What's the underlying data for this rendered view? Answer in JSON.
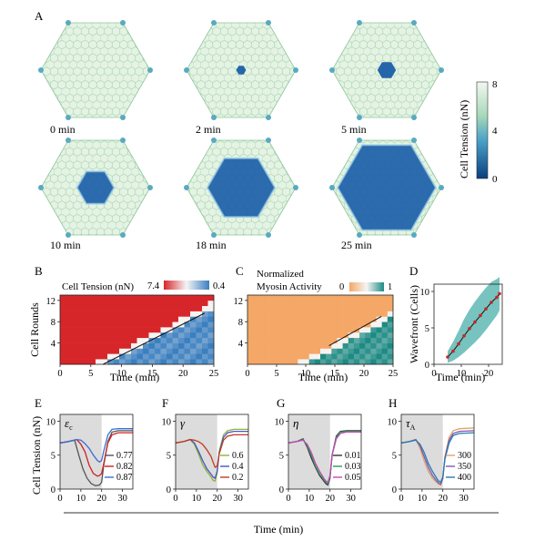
{
  "figure": {
    "panel_labels": [
      "A",
      "B",
      "C",
      "D",
      "E",
      "F",
      "G",
      "H"
    ],
    "bottom_xlabel": "Time (min)"
  },
  "colors": {
    "tension_high": "#e6f4e6",
    "tension_low": "#0a4f8f",
    "cell_edge": "#7fbf8a",
    "hm_red": "#d7262a",
    "hm_blue": "#3a7fc0",
    "hm_orange": "#f4a767",
    "hm_teal": "#1d8a84",
    "dot": "#cc2222",
    "band": "#5fb8b4",
    "shade": "#dcdcdc"
  },
  "chart_data": [
    {
      "id": "A",
      "type": "heatmap",
      "snapshot_labels": [
        "0 min",
        "2 min",
        "5 min",
        "10 min",
        "18 min",
        "25 min"
      ],
      "snapshot_times": [
        0,
        2,
        5,
        10,
        18,
        25
      ],
      "wave_radius_fraction": [
        0,
        0.09,
        0.17,
        0.34,
        0.62,
        0.9
      ],
      "colorbar": {
        "label": "Cell Tension (nN)",
        "ticks": [
          "8",
          "4",
          "0"
        ],
        "range": [
          0,
          8
        ]
      }
    },
    {
      "id": "B",
      "type": "heatmap",
      "title": "Cell Tension (nN)",
      "colorbar_ticks": [
        "7.4",
        "0.4"
      ],
      "xlabel": "Time (min)",
      "ylabel": "Cell Rounds",
      "xticks": [
        "0",
        "5",
        "10",
        "15",
        "20",
        "25"
      ],
      "yticks": [
        "4",
        "8",
        "12"
      ],
      "xlim": [
        0,
        25
      ],
      "ylim": [
        0,
        13
      ],
      "front": {
        "t0": 7,
        "slope": 0.58,
        "fit_line": [
          [
            7,
            0
          ],
          [
            23.5,
            9.6
          ]
        ]
      }
    },
    {
      "id": "C",
      "type": "heatmap",
      "title_lines": [
        "Normalized",
        "Myosin Activity"
      ],
      "colorbar_ticks": [
        "0",
        "1"
      ],
      "xlabel": "Time (min)",
      "xticks": [
        "0",
        "5",
        "10",
        "15",
        "20",
        "25"
      ],
      "yticks": [
        "4",
        "8",
        "12"
      ],
      "xlim": [
        0,
        25
      ],
      "ylim": [
        0,
        13
      ],
      "front": {
        "t0": 10,
        "slope": 0.58,
        "fit_line": [
          [
            14,
            3.5
          ],
          [
            23,
            9
          ]
        ]
      }
    },
    {
      "id": "D",
      "type": "scatter",
      "xlabel": "Time (min)",
      "ylabel": "Wavefront (Cells)",
      "xticks": [
        "0",
        "10",
        "20"
      ],
      "yticks": [
        "0",
        "5",
        "10"
      ],
      "xlim": [
        0,
        25
      ],
      "ylim": [
        0,
        11
      ],
      "x": [
        5,
        7,
        9,
        11,
        13,
        15,
        17,
        19,
        21,
        23,
        24
      ],
      "y": [
        1.0,
        1.8,
        2.8,
        3.9,
        4.9,
        5.8,
        6.7,
        7.6,
        8.5,
        9.2,
        9.7
      ],
      "band_halfwidth": [
        0.8,
        1.3,
        1.8,
        2.3,
        2.6,
        2.8,
        2.9,
        2.9,
        2.8,
        2.5,
        2.3
      ]
    },
    {
      "id": "E",
      "type": "line",
      "ylabel": "Cell Tension (nN)",
      "param_symbol": "ε",
      "param_sub": "c",
      "xticks": [
        "0",
        "10",
        "20",
        "30"
      ],
      "yticks": [
        "0",
        "5",
        "10"
      ],
      "xlim": [
        0,
        35
      ],
      "ylim": [
        0,
        11
      ],
      "shade_until": 20,
      "series": [
        {
          "name": "0.77",
          "color": "#555555",
          "x": [
            0,
            4,
            7,
            9,
            11,
            13,
            15,
            17,
            19,
            20,
            21,
            23,
            25,
            28,
            31,
            35
          ],
          "y": [
            6.8,
            7.0,
            7.2,
            5.0,
            3.0,
            1.6,
            0.8,
            0.5,
            0.6,
            1.0,
            3.5,
            7.0,
            8.4,
            8.6,
            8.6,
            8.6
          ]
        },
        {
          "name": "0.82",
          "color": "#d02020",
          "x": [
            0,
            4,
            8,
            10,
            12,
            14,
            16,
            18,
            19,
            20,
            21,
            23,
            25,
            28,
            31,
            35
          ],
          "y": [
            6.8,
            7.0,
            7.3,
            6.6,
            5.5,
            3.5,
            2.3,
            1.9,
            2.0,
            2.3,
            3.8,
            6.8,
            8.0,
            8.3,
            8.3,
            8.3
          ]
        },
        {
          "name": "0.87",
          "color": "#3a6fd0",
          "x": [
            0,
            4,
            8,
            10,
            12,
            14,
            16,
            18,
            19,
            20,
            21,
            23,
            25,
            28,
            31,
            35
          ],
          "y": [
            6.8,
            7.0,
            7.3,
            7.2,
            6.7,
            6.0,
            5.0,
            4.2,
            4.0,
            4.2,
            5.6,
            8.0,
            8.8,
            8.9,
            8.9,
            8.9
          ]
        }
      ]
    },
    {
      "id": "F",
      "type": "line",
      "param_symbol": "γ",
      "xticks": [
        "0",
        "10",
        "20",
        "30"
      ],
      "yticks": [
        "0",
        "5",
        "10"
      ],
      "xlim": [
        0,
        35
      ],
      "ylim": [
        0,
        11
      ],
      "shade_until": 20,
      "series": [
        {
          "name": "0.6",
          "color": "#8ab53a",
          "x": [
            0,
            4,
            7,
            9,
            11,
            13,
            15,
            17,
            18,
            19,
            20,
            21,
            23,
            25,
            28,
            35
          ],
          "y": [
            6.8,
            7.0,
            7.3,
            6.6,
            5.2,
            3.6,
            2.6,
            1.8,
            1.3,
            1.2,
            2.4,
            5.6,
            8.0,
            8.6,
            8.8,
            8.8
          ]
        },
        {
          "name": "0.4",
          "color": "#4a55c0",
          "x": [
            0,
            4,
            7,
            9,
            11,
            13,
            15,
            17,
            18,
            19,
            20,
            21,
            23,
            25,
            28,
            35
          ],
          "y": [
            6.8,
            7.0,
            7.3,
            6.8,
            5.6,
            4.2,
            3.0,
            2.2,
            1.8,
            1.6,
            2.6,
            5.4,
            7.6,
            8.3,
            8.5,
            8.5
          ]
        },
        {
          "name": "0.2",
          "color": "#c23a22",
          "x": [
            0,
            4,
            7,
            9,
            11,
            13,
            15,
            17,
            18,
            19,
            20,
            21,
            23,
            25,
            28,
            35
          ],
          "y": [
            6.8,
            7.0,
            7.3,
            7.2,
            7.0,
            6.6,
            5.8,
            4.8,
            4.0,
            3.2,
            3.4,
            5.2,
            7.2,
            7.8,
            8.0,
            8.0
          ]
        }
      ]
    },
    {
      "id": "G",
      "type": "line",
      "param_symbol": "η",
      "xticks": [
        "0",
        "10",
        "20",
        "30"
      ],
      "yticks": [
        "0",
        "5",
        "10"
      ],
      "xlim": [
        0,
        35
      ],
      "ylim": [
        0,
        11
      ],
      "shade_until": 20,
      "series": [
        {
          "name": "0.01",
          "color": "#333333",
          "x": [
            0,
            4,
            7,
            9,
            11,
            13,
            15,
            17,
            18,
            19,
            20,
            21,
            23,
            25,
            28,
            35
          ],
          "y": [
            6.8,
            7.0,
            7.4,
            6.2,
            4.6,
            3.2,
            2.0,
            1.2,
            0.8,
            0.6,
            1.6,
            5.0,
            7.8,
            8.5,
            8.6,
            8.6
          ]
        },
        {
          "name": "0.03",
          "color": "#2e9a5a",
          "x": [
            0,
            4,
            7,
            9,
            11,
            13,
            15,
            17,
            18,
            19,
            20,
            21,
            23,
            25,
            28,
            35
          ],
          "y": [
            6.8,
            7.0,
            7.3,
            6.4,
            5.0,
            3.4,
            2.2,
            1.4,
            1.0,
            0.8,
            1.8,
            5.0,
            7.6,
            8.4,
            8.5,
            8.5
          ]
        },
        {
          "name": "0.05",
          "color": "#c24ab8",
          "x": [
            0,
            4,
            7,
            9,
            11,
            13,
            15,
            17,
            18,
            19,
            20,
            21,
            23,
            25,
            28,
            35
          ],
          "y": [
            6.8,
            7.0,
            7.2,
            6.6,
            5.4,
            3.8,
            2.6,
            1.6,
            1.2,
            1.0,
            2.0,
            5.0,
            7.4,
            8.2,
            8.4,
            8.4
          ]
        }
      ]
    },
    {
      "id": "H",
      "type": "line",
      "param_symbol": "τ",
      "param_sub": "A",
      "xticks": [
        "0",
        "10",
        "20",
        "30"
      ],
      "yticks": [
        "0",
        "5",
        "10"
      ],
      "xlim": [
        0,
        35
      ],
      "ylim": [
        0,
        11
      ],
      "shade_until": 20,
      "series": [
        {
          "name": "300",
          "color": "#e0a070",
          "x": [
            0,
            4,
            7,
            9,
            11,
            13,
            15,
            17,
            18,
            19,
            20,
            21,
            23,
            25,
            28,
            35
          ],
          "y": [
            6.8,
            7.0,
            7.3,
            6.0,
            4.2,
            2.6,
            1.6,
            1.0,
            0.7,
            0.6,
            1.5,
            4.8,
            7.6,
            8.6,
            8.9,
            9.0
          ]
        },
        {
          "name": "350",
          "color": "#7a5ab0",
          "x": [
            0,
            4,
            7,
            9,
            11,
            13,
            15,
            17,
            18,
            19,
            20,
            21,
            23,
            25,
            28,
            35
          ],
          "y": [
            6.8,
            7.0,
            7.3,
            6.4,
            4.8,
            3.2,
            2.0,
            1.2,
            0.9,
            0.7,
            1.6,
            4.6,
            7.2,
            8.2,
            8.5,
            8.6
          ]
        },
        {
          "name": "400",
          "color": "#2a7ab0",
          "x": [
            0,
            4,
            7,
            9,
            11,
            13,
            15,
            17,
            18,
            19,
            20,
            21,
            23,
            25,
            28,
            35
          ],
          "y": [
            6.8,
            7.0,
            7.2,
            6.6,
            5.4,
            3.8,
            2.6,
            1.6,
            1.2,
            1.0,
            1.8,
            4.4,
            6.8,
            7.9,
            8.2,
            8.3
          ]
        }
      ]
    }
  ]
}
